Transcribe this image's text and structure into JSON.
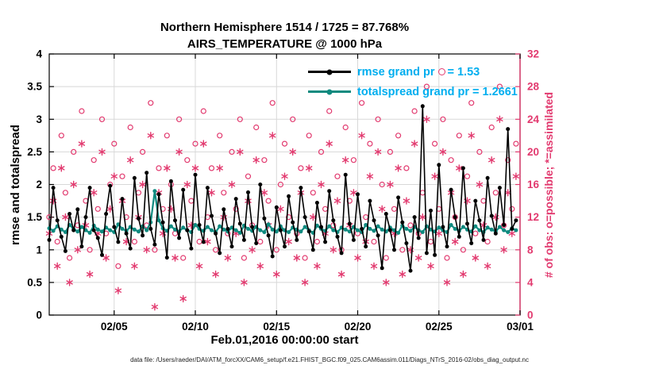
{
  "title": {
    "line1": "Northern Hemisphere 1514 / 1725 = 87.768%",
    "line2": "AIRS_TEMPERATURE @ 1000 hPa"
  },
  "axes": {
    "ylabel_left": "rmse and totalspread",
    "ylabel_right": "# of obs: o=possible; *=assimilated",
    "xlabel": "Feb.01,2016 00:00:00 start"
  },
  "legend": {
    "rmse": {
      "label_pre": "rmse grand pr",
      "label_post": "= 1.53"
    },
    "totalspread": {
      "label": "totalspread grand pr = 1.2661"
    }
  },
  "footer": "data file: /Users/raeder/DAI/ATM_forcXX/CAM6_setup/f.e21.FHIST_BGC.f09_025.CAM6assim.011/Diags_NTrS_2016-02/obs_diag_output.nc",
  "colors": {
    "rmse": "#000000",
    "totalspread": "#0E8A7F",
    "obs": "#E23A6F",
    "legend_text": "#00AEEF",
    "grid": "#D8D8D8"
  },
  "chart_data": {
    "type": "line",
    "title": "Northern Hemisphere 1514 / 1725 = 87.768%",
    "subtitle": "AIRS_TEMPERATURE @ 1000 hPa",
    "xlabel": "Feb.01,2016 00:00:00 start",
    "ylabel_left": "rmse and totalspread",
    "ylabel_right": "# of obs: o=possible; *=assimilated",
    "grid": true,
    "legend_position": "upper center-right",
    "ylim_left": [
      0,
      4
    ],
    "yticks_left": [
      0,
      0.5,
      1,
      1.5,
      2,
      2.5,
      3,
      3.5,
      4
    ],
    "ylim_right": [
      0,
      32
    ],
    "yticks_right": [
      0,
      4,
      8,
      12,
      16,
      20,
      24,
      28,
      32
    ],
    "xlim": [
      0,
      29
    ],
    "x_days": {
      "start": 0,
      "step": 0.25,
      "count": 116
    },
    "xticks": [
      {
        "day": 4,
        "label": "02/05"
      },
      {
        "day": 9,
        "label": "02/10"
      },
      {
        "day": 14,
        "label": "02/15"
      },
      {
        "day": 19,
        "label": "02/20"
      },
      {
        "day": 24,
        "label": "02/25"
      },
      {
        "day": 29,
        "label": "03/01"
      }
    ],
    "grand_averages": {
      "rmse": 1.53,
      "totalspread": 1.2661
    },
    "series": [
      {
        "name": "possible",
        "axis": "right",
        "color": "#E23A6F",
        "marker": "circle",
        "values": [
          12,
          18,
          9,
          22,
          15,
          7,
          20,
          11,
          25,
          14,
          8,
          19,
          13,
          24,
          10,
          16,
          21,
          6,
          17,
          12,
          23,
          9,
          15,
          20,
          11,
          26,
          8,
          18,
          13,
          22,
          16,
          10,
          24,
          7,
          19,
          14,
          21,
          9,
          25,
          12,
          18,
          8,
          22,
          15,
          10,
          20,
          13,
          24,
          7,
          17,
          11,
          23,
          9,
          19,
          14,
          26,
          8,
          16,
          21,
          12,
          24,
          10,
          18,
          7,
          22,
          15,
          9,
          20,
          13,
          25,
          11,
          17,
          8,
          23,
          14,
          19,
          10,
          26,
          12,
          21,
          9,
          24,
          16,
          7,
          20,
          13,
          22,
          8,
          18,
          11,
          25,
          10,
          15,
          28,
          9,
          21,
          13,
          24,
          7,
          19,
          12,
          22,
          8,
          17,
          26,
          10,
          20,
          14,
          9,
          23,
          15,
          28,
          11,
          19,
          13,
          21
        ]
      },
      {
        "name": "assimilated",
        "axis": "right",
        "color": "#E23A6F",
        "marker": "asterisk",
        "values": [
          10,
          14,
          6,
          18,
          12,
          4,
          16,
          8,
          21,
          11,
          5,
          15,
          10,
          20,
          7,
          13,
          17,
          3,
          14,
          9,
          19,
          6,
          12,
          16,
          8,
          22,
          1,
          15,
          10,
          18,
          13,
          7,
          20,
          2,
          16,
          11,
          18,
          6,
          21,
          9,
          15,
          5,
          18,
          12,
          7,
          16,
          10,
          20,
          4,
          14,
          8,
          19,
          6,
          15,
          11,
          22,
          5,
          13,
          17,
          9,
          20,
          7,
          15,
          4,
          18,
          12,
          6,
          16,
          10,
          21,
          8,
          14,
          5,
          19,
          11,
          15,
          7,
          22,
          9,
          17,
          6,
          20,
          13,
          4,
          16,
          10,
          18,
          5,
          14,
          8,
          21,
          7,
          12,
          24,
          6,
          17,
          10,
          20,
          4,
          15,
          9,
          18,
          5,
          14,
          22,
          7,
          16,
          11,
          6,
          19,
          12,
          24,
          8,
          15,
          10,
          17
        ]
      },
      {
        "name": "totalspread",
        "axis": "left",
        "color": "#0E8A7F",
        "marker": "dot",
        "width": 2.2,
        "values": [
          1.33,
          1.29,
          1.36,
          1.31,
          1.27,
          1.38,
          1.32,
          1.28,
          1.35,
          1.3,
          1.26,
          1.37,
          1.31,
          1.28,
          1.34,
          1.3,
          1.27,
          1.39,
          1.32,
          1.29,
          1.35,
          1.31,
          1.28,
          1.36,
          1.3,
          1.42,
          1.9,
          1.45,
          1.33,
          1.29,
          1.36,
          1.31,
          1.28,
          1.34,
          1.3,
          1.27,
          1.38,
          1.32,
          1.29,
          1.35,
          1.3,
          1.27,
          1.36,
          1.31,
          1.28,
          1.34,
          1.3,
          1.26,
          1.37,
          1.32,
          1.29,
          1.35,
          1.3,
          1.27,
          1.39,
          1.31,
          1.28,
          1.36,
          1.3,
          1.27,
          1.34,
          1.31,
          1.28,
          1.35,
          1.3,
          1.26,
          1.37,
          1.32,
          1.29,
          1.36,
          1.3,
          1.27,
          1.34,
          1.31,
          1.28,
          1.35,
          1.3,
          1.27,
          1.38,
          1.32,
          1.29,
          1.36,
          1.31,
          1.28,
          1.34,
          1.3,
          1.26,
          1.37,
          1.32,
          1.29,
          1.35,
          1.3,
          1.27,
          1.36,
          1.31,
          1.28,
          1.34,
          1.3,
          1.27,
          1.38,
          1.32,
          1.29,
          1.35,
          1.31,
          1.28,
          1.36,
          1.3,
          1.27,
          1.34,
          1.31,
          1.28,
          1.35,
          1.3,
          1.27,
          1.33,
          1.3
        ]
      },
      {
        "name": "rmse",
        "axis": "left",
        "color": "#000000",
        "marker": "dot",
        "width": 1.6,
        "values": [
          1.15,
          1.95,
          1.45,
          1.2,
          0.98,
          1.55,
          1.3,
          1.62,
          1.05,
          1.5,
          1.95,
          1.3,
          1.18,
          0.92,
          1.55,
          1.98,
          1.35,
          1.12,
          1.78,
          1.25,
          1.02,
          2.1,
          1.48,
          1.22,
          2.18,
          1.32,
          1.08,
          1.85,
          1.42,
          0.88,
          2.05,
          1.45,
          1.18,
          1.92,
          1.3,
          1.02,
          2.15,
          1.38,
          1.12,
          1.95,
          1.52,
          1.25,
          0.95,
          1.62,
          1.32,
          1.05,
          1.78,
          1.4,
          1.15,
          1.88,
          1.35,
          1.1,
          2.0,
          1.48,
          1.22,
          0.9,
          1.65,
          1.3,
          1.05,
          1.82,
          1.42,
          1.15,
          1.95,
          1.5,
          1.28,
          1.0,
          1.72,
          1.35,
          1.12,
          1.9,
          1.45,
          1.2,
          0.95,
          2.15,
          1.4,
          1.15,
          1.85,
          1.32,
          1.05,
          1.75,
          1.45,
          1.22,
          0.72,
          1.55,
          1.3,
          1.0,
          1.8,
          1.42,
          1.1,
          0.68,
          1.5,
          1.18,
          3.2,
          0.95,
          1.6,
          0.92,
          2.3,
          1.35,
          1.05,
          1.92,
          1.5,
          1.2,
          2.25,
          1.4,
          1.1,
          1.75,
          1.45,
          1.15,
          2.1,
          1.52,
          1.25,
          1.95,
          1.38,
          2.85,
          1.32,
          1.45
        ]
      }
    ]
  }
}
